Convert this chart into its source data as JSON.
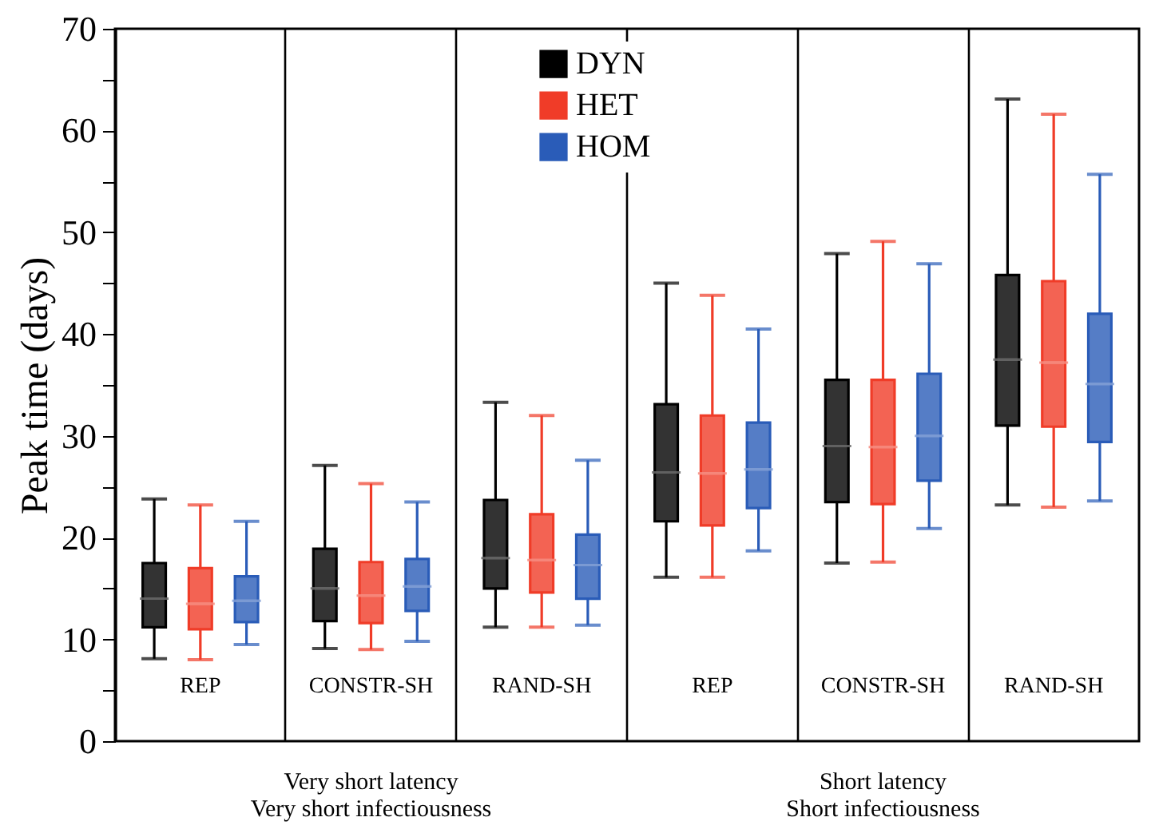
{
  "chart_data": {
    "type": "box",
    "ylabel": "Peak time (days)",
    "categories": [
      "REP",
      "CONSTR-SH",
      "RAND-SH",
      "REP",
      "CONSTR-SH",
      "RAND-SH"
    ],
    "ylim": [
      0,
      70
    ],
    "yticks": [
      0,
      {
        "value": 5,
        "label": null
      },
      10,
      {
        "value": 15,
        "label": null
      },
      20,
      {
        "value": 25,
        "label": null
      },
      30,
      {
        "value": 35,
        "label": null
      },
      40,
      {
        "value": 45,
        "label": null
      },
      50,
      {
        "value": 55,
        "label": null
      },
      60,
      {
        "value": 65,
        "label": null
      },
      70
    ],
    "grid": "x",
    "legend": "top",
    "series": [
      {
        "name": "DYN",
        "color": "#000000",
        "boxes": [
          {
            "low": 8.1,
            "q1": 11.2,
            "median": 14,
            "q3": 17.5,
            "high": 23.8
          },
          {
            "low": 9.1,
            "q1": 11.8,
            "median": 15,
            "q3": 18.9,
            "high": 27.1
          },
          {
            "low": 11.2,
            "q1": 15,
            "median": 18,
            "q3": 23.7,
            "high": 33.3
          },
          {
            "low": 16.1,
            "q1": 21.6,
            "median": 26.4,
            "q3": 33.1,
            "high": 45
          },
          {
            "low": 17.5,
            "q1": 23.5,
            "median": 29,
            "q3": 35.5,
            "high": 47.9
          },
          {
            "low": 23.2,
            "q1": 31,
            "median": 37.5,
            "q3": 45.8,
            "high": 63.1
          }
        ]
      },
      {
        "name": "HET",
        "color": "#f03c28",
        "boxes": [
          {
            "low": 8,
            "q1": 11,
            "median": 13.5,
            "q3": 17,
            "high": 23.2
          },
          {
            "low": 9,
            "q1": 11.6,
            "median": 14.3,
            "q3": 17.6,
            "high": 25.3
          },
          {
            "low": 11.2,
            "q1": 14.6,
            "median": 17.8,
            "q3": 22.3,
            "high": 32
          },
          {
            "low": 16.1,
            "q1": 21.2,
            "median": 26.3,
            "q3": 32,
            "high": 43.8
          },
          {
            "low": 17.6,
            "q1": 23.3,
            "median": 28.9,
            "q3": 35.5,
            "high": 49.1
          },
          {
            "low": 23,
            "q1": 30.9,
            "median": 37.2,
            "q3": 45.2,
            "high": 61.6
          }
        ]
      },
      {
        "name": "HOM",
        "color": "#2a5cb8",
        "boxes": [
          {
            "low": 9.5,
            "q1": 11.7,
            "median": 13.8,
            "q3": 16.2,
            "high": 21.6
          },
          {
            "low": 9.8,
            "q1": 12.8,
            "median": 15.2,
            "q3": 17.9,
            "high": 23.5
          },
          {
            "low": 11.4,
            "q1": 14,
            "median": 17.3,
            "q3": 20.3,
            "high": 27.6
          },
          {
            "low": 18.7,
            "q1": 22.9,
            "median": 26.7,
            "q3": 31.3,
            "high": 40.5
          },
          {
            "low": 20.9,
            "q1": 25.6,
            "median": 30,
            "q3": 36.1,
            "high": 46.9
          },
          {
            "low": 23.6,
            "q1": 29.4,
            "median": 35.1,
            "q3": 42,
            "high": 55.7
          }
        ]
      }
    ],
    "annotations": [
      "Very short latency\nVery short infectiousness",
      "Short latency\nShort infectiousness"
    ]
  }
}
